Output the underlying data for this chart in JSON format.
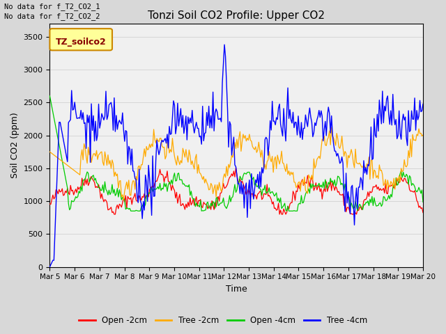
{
  "title": "Tonzi Soil CO2 Profile: Upper CO2",
  "xlabel": "Time",
  "ylabel": "Soil CO2 (ppm)",
  "ylim": [
    0,
    3700
  ],
  "yticks": [
    0,
    500,
    1000,
    1500,
    2000,
    2500,
    3000,
    3500
  ],
  "annotations": [
    "No data for f_T2_CO2_1",
    "No data for f_T2_CO2_2"
  ],
  "legend_label": "TZ_soilco2",
  "series_labels": [
    "Open -2cm",
    "Tree -2cm",
    "Open -4cm",
    "Tree -4cm"
  ],
  "series_colors": [
    "#ff0000",
    "#ffaa00",
    "#00cc00",
    "#0000ff"
  ],
  "background_color": "#d8d8d8",
  "plot_bg_color": "#f0f0f0",
  "x_tick_labels": [
    "Mar 5",
    "Mar 6",
    "Mar 7",
    "Mar 8",
    "Mar 9",
    "Mar 10",
    "Mar 11",
    "Mar 12",
    "Mar 13",
    "Mar 14",
    "Mar 15",
    "Mar 16",
    "Mar 17",
    "Mar 18",
    "Mar 19",
    "Mar 20"
  ],
  "num_points": 360
}
